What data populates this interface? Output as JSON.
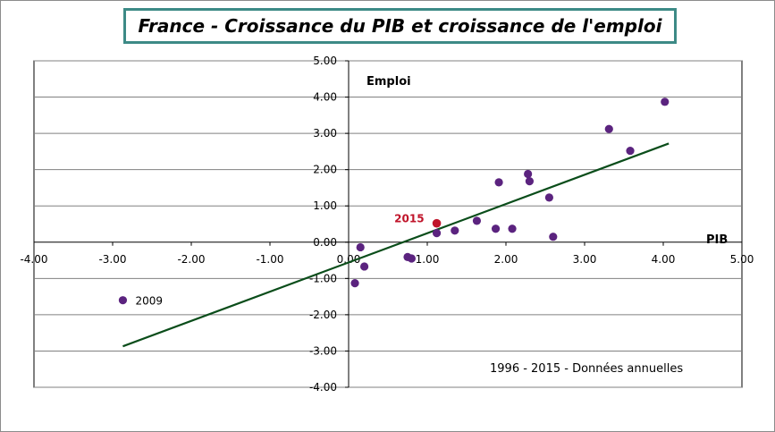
{
  "chart_data": {
    "type": "scatter",
    "title": "France - Croissance du PIB et croissance de l'emploi",
    "xlabel": "PIB",
    "ylabel": "Emploi",
    "xlim": [
      -4,
      5
    ],
    "ylim": [
      -4,
      5
    ],
    "x_ticks": [
      "-4.00",
      "-3.00",
      "-2.00",
      "-1.00",
      "0.00",
      "1.00",
      "2.00",
      "3.00",
      "4.00",
      "5.00"
    ],
    "y_ticks": [
      "5.00",
      "4.00",
      "3.00",
      "2.00",
      "1.00",
      "0.00",
      "-1.00",
      "-2.00",
      "-3.00",
      "-4.00"
    ],
    "grid": true,
    "note": "1996 - 2015 - Données annuelles",
    "points": [
      {
        "x": -2.87,
        "y": -1.6,
        "label": "2009"
      },
      {
        "x": 0.08,
        "y": -1.13
      },
      {
        "x": 0.15,
        "y": -0.14
      },
      {
        "x": 0.2,
        "y": -0.67
      },
      {
        "x": 0.75,
        "y": -0.41
      },
      {
        "x": 0.8,
        "y": -0.45
      },
      {
        "x": 1.12,
        "y": 0.25
      },
      {
        "x": 1.35,
        "y": 0.32
      },
      {
        "x": 1.63,
        "y": 0.59
      },
      {
        "x": 1.87,
        "y": 0.37
      },
      {
        "x": 1.91,
        "y": 1.65
      },
      {
        "x": 2.08,
        "y": 0.37
      },
      {
        "x": 2.28,
        "y": 1.88
      },
      {
        "x": 2.3,
        "y": 1.68
      },
      {
        "x": 2.55,
        "y": 1.23
      },
      {
        "x": 2.6,
        "y": 0.15
      },
      {
        "x": 3.31,
        "y": 3.12
      },
      {
        "x": 3.58,
        "y": 2.52
      },
      {
        "x": 4.02,
        "y": 3.87
      }
    ],
    "highlight": {
      "x": 1.12,
      "y": 0.52,
      "label": "2015"
    },
    "trendline": {
      "x": [
        -2.87,
        4.07
      ],
      "y": [
        -2.87,
        2.72
      ]
    },
    "colors": {
      "point": "#5b237f",
      "highlight": "#c0142a",
      "trend": "#0a4d1a",
      "grid": "#808080",
      "axis": "#000000",
      "title_border": "#3d8a86"
    }
  }
}
